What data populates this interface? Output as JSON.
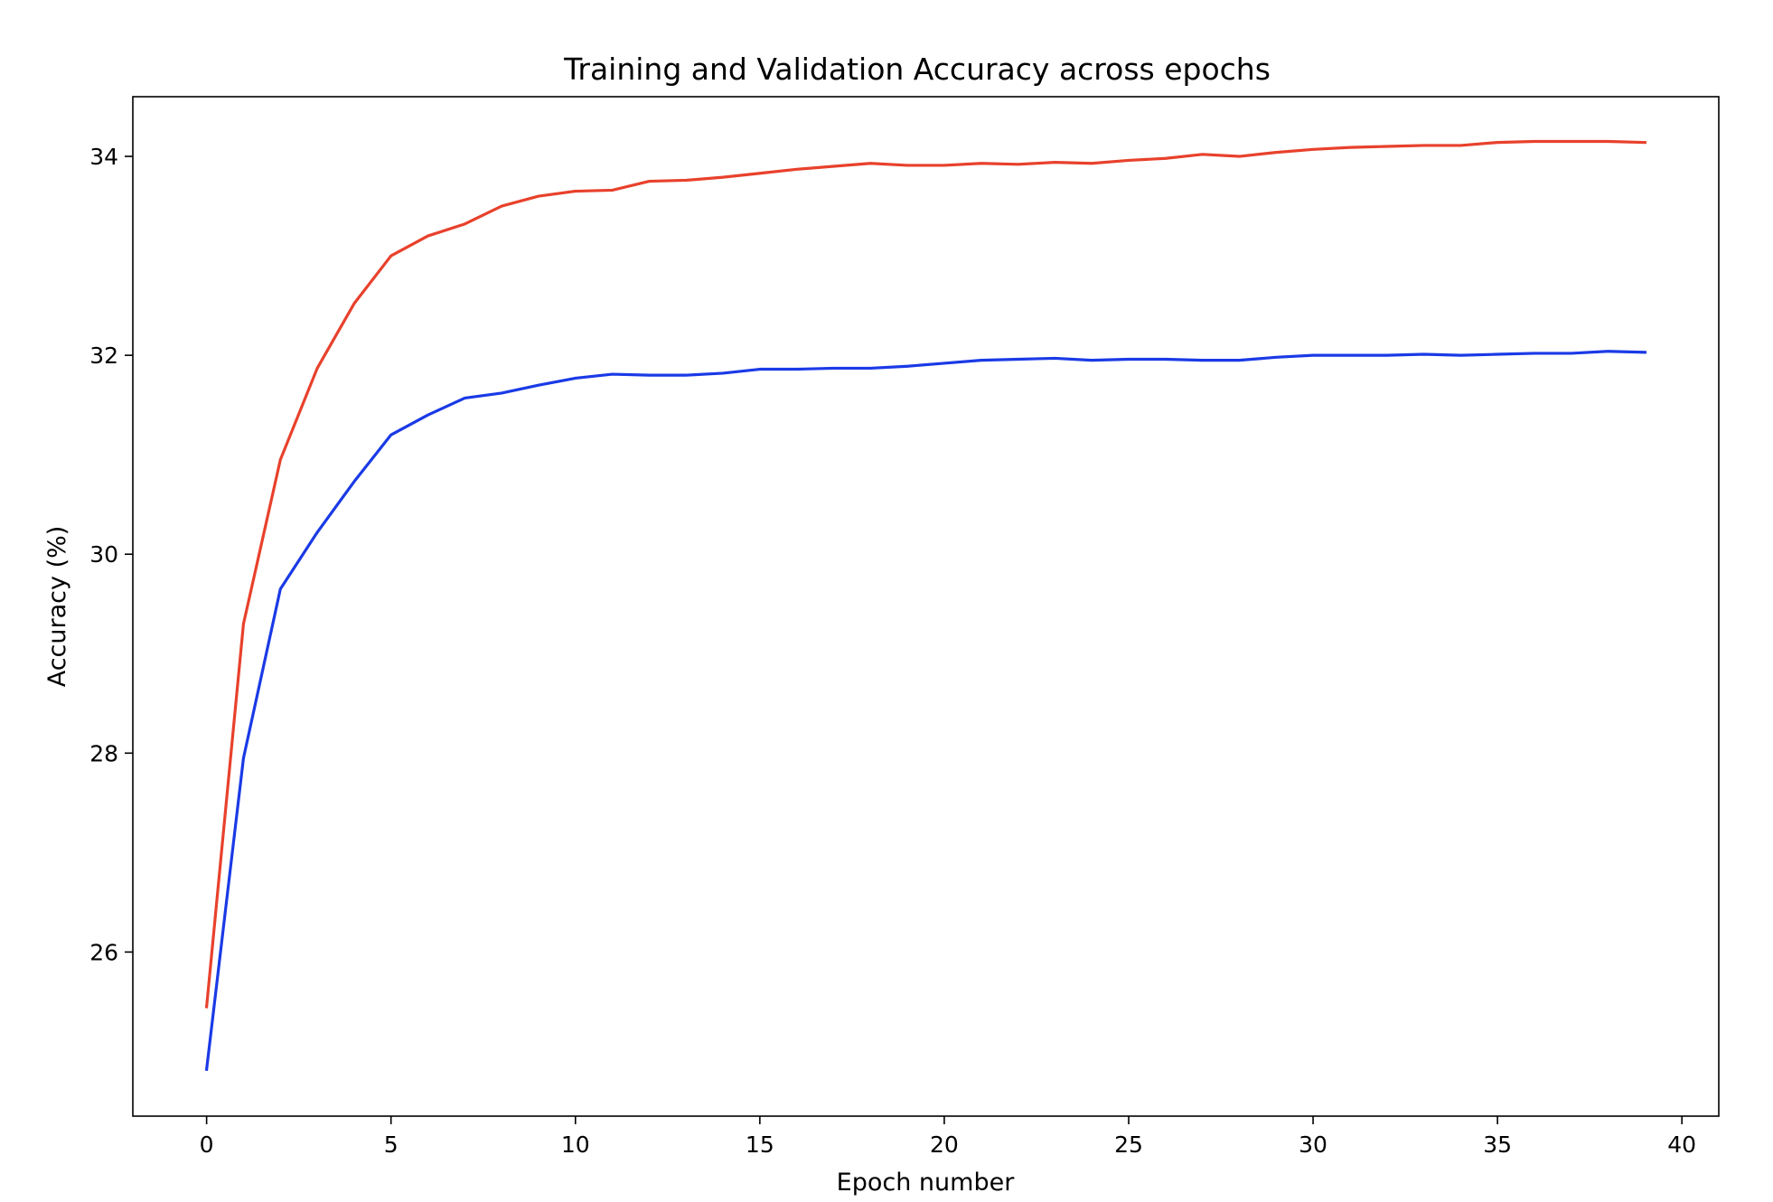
{
  "chart_data": {
    "type": "line",
    "title": "Training and Validation Accuracy across epochs",
    "xlabel": "Epoch number",
    "ylabel": "Accuracy (%)",
    "xlim": [
      -2,
      41
    ],
    "ylim": [
      24.35,
      34.6
    ],
    "xticks": [
      0,
      5,
      10,
      15,
      20,
      25,
      30,
      35,
      40
    ],
    "yticks": [
      26,
      28,
      30,
      32,
      34
    ],
    "grid": false,
    "legend": "none",
    "x": [
      0,
      1,
      2,
      3,
      4,
      5,
      6,
      7,
      8,
      9,
      10,
      11,
      12,
      13,
      14,
      15,
      16,
      17,
      18,
      19,
      20,
      21,
      22,
      23,
      24,
      25,
      26,
      27,
      28,
      29,
      30,
      31,
      32,
      33,
      34,
      35,
      36,
      37,
      38,
      39
    ],
    "series": [
      {
        "color": "#e8412c",
        "values": [
          25.45,
          29.3,
          30.95,
          31.87,
          32.52,
          33.0,
          33.2,
          33.32,
          33.5,
          33.6,
          33.65,
          33.66,
          33.75,
          33.76,
          33.79,
          33.83,
          33.87,
          33.9,
          33.93,
          33.91,
          33.91,
          33.93,
          33.92,
          33.94,
          33.93,
          33.96,
          33.98,
          34.02,
          34.0,
          34.04,
          34.07,
          34.09,
          34.1,
          34.11,
          34.11,
          34.14,
          34.15,
          34.15,
          34.15,
          34.14
        ]
      },
      {
        "color": "#1a3ae6",
        "values": [
          24.82,
          27.95,
          29.65,
          30.22,
          30.73,
          31.2,
          31.4,
          31.57,
          31.62,
          31.7,
          31.77,
          31.81,
          31.8,
          31.8,
          31.82,
          31.86,
          31.86,
          31.87,
          31.87,
          31.89,
          31.92,
          31.95,
          31.96,
          31.97,
          31.95,
          31.96,
          31.96,
          31.95,
          31.95,
          31.98,
          32.0,
          32.0,
          32.0,
          32.01,
          32.0,
          32.01,
          32.02,
          32.02,
          32.04,
          32.03
        ]
      }
    ]
  }
}
